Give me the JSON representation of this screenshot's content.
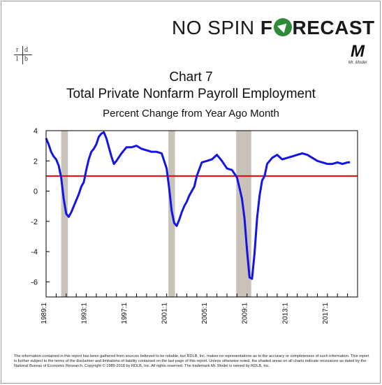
{
  "brand": {
    "part1": "NO SPIN ",
    "part2a": "F",
    "part2b": "RECAST",
    "icon": "up-arrow-circle-icon",
    "accent": "#2e8b3a"
  },
  "logos": {
    "left_letters": [
      "r",
      "d",
      "l",
      "b"
    ],
    "right_mark": "M",
    "right_caption": "Mr. Model"
  },
  "title": "Chart 7",
  "subtitle": "Total Private Nonfarm Payroll Employment",
  "subtitle2": "Percent Change from Year Ago Month",
  "disclaimer": "The information contained in this report has been gathered from sources believed to be reliable, but RDLB, Inc. makes no representations as to the accuracy or completeness of such information. This report is further subject to the terms of the disclaimer and limitations of liability contained on the last page of this report. Unless otherwise noted, the shaded areas on all charts indicate recessions as dated by the National Bureau of Economic Research. Copyright © 1989-2018 by RDLB, Inc. All rights reserved. The trademark Mr. Model is owned by RDLB, Inc.",
  "chart_data": {
    "type": "line",
    "x_range": [
      1989.0,
      2020.0
    ],
    "ylim": [
      -7,
      4
    ],
    "yticks": [
      4,
      2,
      0,
      -2,
      -4,
      -6
    ],
    "ytick_labels": [
      "4",
      "2",
      "0",
      "-2",
      "-4",
      "-6"
    ],
    "xticks": [
      1989.0,
      1993.0,
      1997.0,
      2001.0,
      2005.0,
      2009.0,
      2013.0,
      2017.0
    ],
    "xtick_labels": [
      "1989:1",
      "1993:1",
      "1997:1",
      "2001:1",
      "2005:1",
      "2009:1",
      "2013:1",
      "2017:1"
    ],
    "reference_line": {
      "y": 1,
      "color": "#e8000b"
    },
    "line_color": "#1414e6",
    "recessions": [
      [
        1990.5,
        1991.17
      ],
      [
        2001.17,
        2001.83
      ],
      [
        2007.92,
        2009.42
      ]
    ],
    "series": [
      {
        "x": [
          1989.0,
          1989.25,
          1989.5,
          1989.75,
          1990.0,
          1990.25,
          1990.5,
          1990.75,
          1991.0,
          1991.25,
          1991.5,
          1991.75,
          1992.0,
          1992.25,
          1992.5,
          1992.75,
          1993.0,
          1993.25,
          1993.5,
          1993.75,
          1994.0,
          1994.25,
          1994.5,
          1994.75,
          1995.0,
          1995.25,
          1995.5,
          1995.75,
          1996.0,
          1996.5,
          1997.0,
          1997.5,
          1998.0,
          1998.5,
          1999.0,
          1999.5,
          2000.0,
          2000.5,
          2001.0,
          2001.25,
          2001.5,
          2001.75,
          2002.0,
          2002.25,
          2002.5,
          2002.75,
          2003.0,
          2003.25,
          2003.5,
          2003.75,
          2004.0,
          2004.5,
          2005.0,
          2005.5,
          2006.0,
          2006.5,
          2007.0,
          2007.5,
          2008.0,
          2008.25,
          2008.5,
          2008.75,
          2009.0,
          2009.25,
          2009.5,
          2009.75,
          2010.0,
          2010.25,
          2010.5,
          2010.75,
          2011.0,
          2011.5,
          2012.0,
          2012.5,
          2013.0,
          2013.5,
          2014.0,
          2014.5,
          2015.0,
          2015.5,
          2016.0,
          2016.5,
          2017.0,
          2017.5,
          2018.0,
          2018.5,
          2019.0,
          2019.25
        ],
        "y": [
          3.5,
          3.1,
          2.6,
          2.3,
          2.1,
          1.7,
          0.9,
          -0.5,
          -1.5,
          -1.7,
          -1.4,
          -1.0,
          -0.6,
          -0.2,
          0.3,
          0.6,
          1.4,
          2.1,
          2.6,
          2.8,
          3.1,
          3.6,
          3.8,
          3.9,
          3.5,
          2.9,
          2.3,
          1.8,
          2.0,
          2.5,
          2.9,
          2.9,
          3.0,
          2.8,
          2.7,
          2.6,
          2.6,
          2.5,
          1.5,
          0.2,
          -1.3,
          -2.1,
          -2.3,
          -1.9,
          -1.4,
          -1.0,
          -0.7,
          -0.3,
          0.0,
          0.3,
          1.0,
          1.9,
          2.0,
          2.1,
          2.4,
          2.0,
          1.5,
          1.4,
          0.9,
          0.2,
          -0.5,
          -1.8,
          -3.9,
          -5.7,
          -5.8,
          -4.1,
          -1.8,
          -0.3,
          0.7,
          1.0,
          1.8,
          2.2,
          2.4,
          2.1,
          2.2,
          2.3,
          2.4,
          2.5,
          2.4,
          2.2,
          2.0,
          1.9,
          1.8,
          1.8,
          1.9,
          1.8,
          1.9,
          1.9
        ]
      }
    ]
  }
}
